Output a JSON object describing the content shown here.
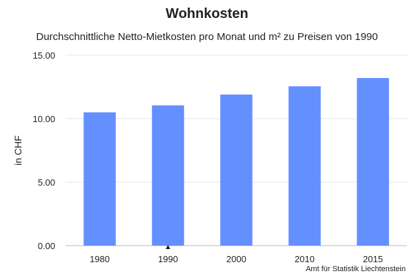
{
  "chart_data": {
    "type": "bar",
    "title": "Wohnkosten",
    "subtitle": "Durchschnittliche Netto-Mietkosten pro Monat und m² zu Preisen von 1990",
    "xlabel": "",
    "ylabel": "in CHF",
    "categories": [
      "1980",
      "1990",
      "2000",
      "2010",
      "2015"
    ],
    "values": [
      10.5,
      11.05,
      11.9,
      12.55,
      13.2
    ],
    "ylim": [
      0,
      15
    ],
    "yticks": [
      "0.00",
      "5.00",
      "10.00",
      "15.00"
    ],
    "ytick_values": [
      0,
      5,
      10,
      15
    ],
    "grid": true,
    "bar_color": "#648FFF",
    "marker_category": "1990",
    "marker_symbol": "▲",
    "credit": "Amt für Statistik Liechtenstein"
  }
}
